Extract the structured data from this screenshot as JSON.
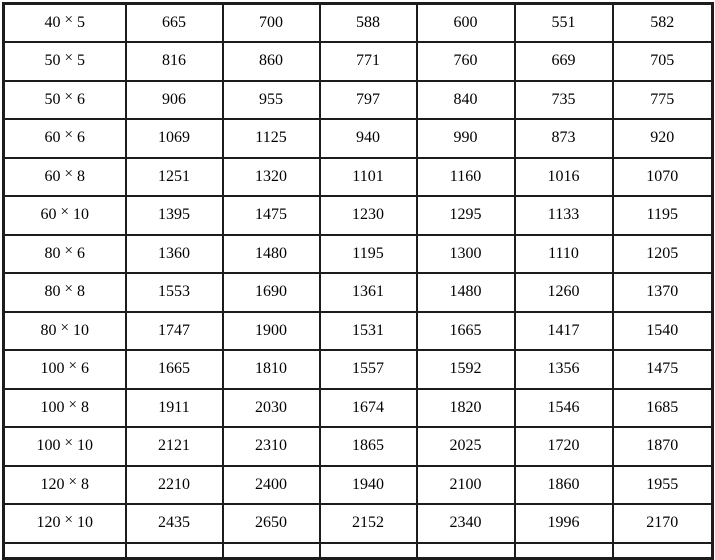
{
  "page": {
    "background_color": "#ffffff"
  },
  "table": {
    "border_color": "#1c1c1c",
    "shaded_cell_color": "#d9d9d9",
    "unshaded_cell_color": "#ffffff",
    "multiply_symbol": "×",
    "shaded_value_column_indexes": [
      2,
      3
    ],
    "has_partial_next_row_at_bottom": true,
    "rows": [
      {
        "size": "40×5",
        "values": [
          "665",
          "700",
          "588",
          "600",
          "551",
          "582"
        ]
      },
      {
        "size": "50×5",
        "values": [
          "816",
          "860",
          "771",
          "760",
          "669",
          "705"
        ]
      },
      {
        "size": "50×6",
        "values": [
          "906",
          "955",
          "797",
          "840",
          "735",
          "775"
        ]
      },
      {
        "size": "60×6",
        "values": [
          "1069",
          "1125",
          "940",
          "990",
          "873",
          "920"
        ]
      },
      {
        "size": "60×8",
        "values": [
          "1251",
          "1320",
          "1101",
          "1160",
          "1016",
          "1070"
        ]
      },
      {
        "size": "60×10",
        "values": [
          "1395",
          "1475",
          "1230",
          "1295",
          "1133",
          "1195"
        ]
      },
      {
        "size": "80×6",
        "values": [
          "1360",
          "1480",
          "1195",
          "1300",
          "1110",
          "1205"
        ]
      },
      {
        "size": "80×8",
        "values": [
          "1553",
          "1690",
          "1361",
          "1480",
          "1260",
          "1370"
        ]
      },
      {
        "size": "80×10",
        "values": [
          "1747",
          "1900",
          "1531",
          "1665",
          "1417",
          "1540"
        ]
      },
      {
        "size": "100×6",
        "values": [
          "1665",
          "1810",
          "1557",
          "1592",
          "1356",
          "1475"
        ]
      },
      {
        "size": "100×8",
        "values": [
          "1911",
          "2030",
          "1674",
          "1820",
          "1546",
          "1685"
        ]
      },
      {
        "size": "100×10",
        "values": [
          "2121",
          "2310",
          "1865",
          "2025",
          "1720",
          "1870"
        ]
      },
      {
        "size": "120×8",
        "values": [
          "2210",
          "2400",
          "1940",
          "2100",
          "1860",
          "1955"
        ]
      },
      {
        "size": "120×10",
        "values": [
          "2435",
          "2650",
          "2152",
          "2340",
          "1996",
          "2170"
        ]
      }
    ]
  }
}
